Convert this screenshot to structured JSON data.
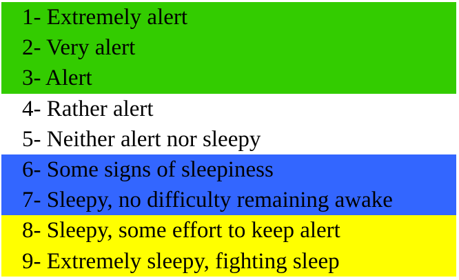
{
  "bands": [
    {
      "color": "#33cc00",
      "items": [
        "1- Extremely alert",
        "2- Very alert",
        "3- Alert"
      ]
    },
    {
      "color": "#ffffff",
      "items": [
        "4- Rather alert",
        "5- Neither alert nor sleepy"
      ]
    },
    {
      "color": "#3366ff",
      "items": [
        "6- Some signs of sleepiness",
        "7- Sleepy, no difficulty remaining awake"
      ]
    },
    {
      "color": "#ffff00",
      "items": [
        "8- Sleepy, some effort to keep alert",
        "9- Extremely sleepy, fighting sleep"
      ]
    }
  ]
}
